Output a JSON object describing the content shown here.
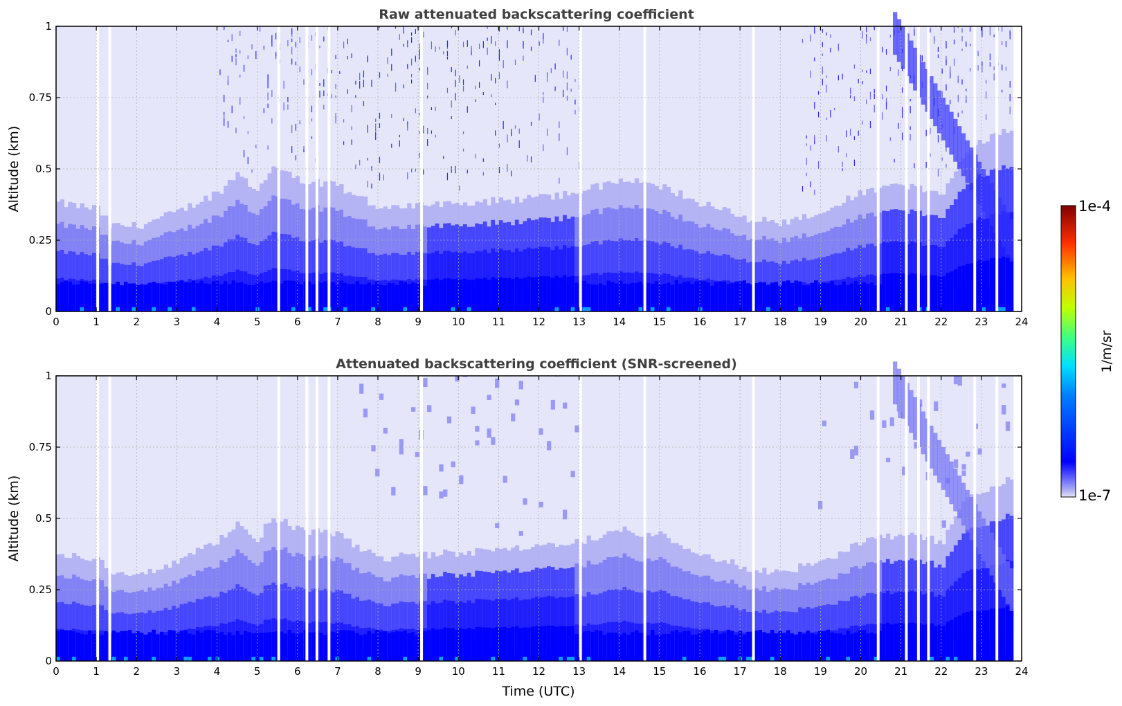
{
  "chart_data": [
    {
      "type": "heatmap",
      "title": "Raw attenuated backscattering coefficient",
      "xlabel": "",
      "ylabel": "Altitude (km)",
      "xlim": [
        0,
        24
      ],
      "ylim": [
        0,
        1
      ],
      "x_ticks": [
        "0",
        "1",
        "2",
        "3",
        "4",
        "5",
        "6",
        "7",
        "8",
        "9",
        "10",
        "11",
        "12",
        "13",
        "14",
        "15",
        "16",
        "17",
        "18",
        "19",
        "20",
        "21",
        "22",
        "23",
        "24"
      ],
      "y_ticks": [
        "0",
        "0.25",
        "0.5",
        "0.75",
        "1"
      ],
      "grid": true,
      "variable": "attenuated backscattering coefficient",
      "units": "1/m/sr",
      "boundary_layer_top_km": [
        {
          "t": 0,
          "z": 0.38
        },
        {
          "t": 1,
          "z": 0.36
        },
        {
          "t": 1.3,
          "z": 0.3
        },
        {
          "t": 2,
          "z": 0.3
        },
        {
          "t": 3,
          "z": 0.35
        },
        {
          "t": 4,
          "z": 0.42
        },
        {
          "t": 4.5,
          "z": 0.48
        },
        {
          "t": 5,
          "z": 0.42
        },
        {
          "t": 5.3,
          "z": 0.51
        },
        {
          "t": 6,
          "z": 0.46
        },
        {
          "t": 7,
          "z": 0.44
        },
        {
          "t": 8,
          "z": 0.36
        },
        {
          "t": 9,
          "z": 0.37
        },
        {
          "t": 10,
          "z": 0.38
        },
        {
          "t": 11,
          "z": 0.39
        },
        {
          "t": 12,
          "z": 0.4
        },
        {
          "t": 13,
          "z": 0.42
        },
        {
          "t": 14,
          "z": 0.46
        },
        {
          "t": 15,
          "z": 0.44
        },
        {
          "t": 16,
          "z": 0.38
        },
        {
          "t": 17,
          "z": 0.33
        },
        {
          "t": 18,
          "z": 0.31
        },
        {
          "t": 19,
          "z": 0.35
        },
        {
          "t": 20,
          "z": 0.42
        },
        {
          "t": 21,
          "z": 0.44
        },
        {
          "t": 22,
          "z": 0.42
        },
        {
          "t": 22.5,
          "z": 0.55
        },
        {
          "t": 23,
          "z": 0.6
        },
        {
          "t": 23.8,
          "z": 0.65
        }
      ],
      "data_gaps_utc": [
        1.0,
        1.3,
        5.5,
        6.2,
        6.45,
        6.75,
        9.05,
        13.0,
        14.6,
        17.3,
        20.4,
        21.1,
        21.4,
        21.65,
        22.8,
        23.35,
        23.8
      ]
    },
    {
      "type": "heatmap",
      "title": "Attenuated backscattering coefficient (SNR-screened)",
      "xlabel": "Time (UTC)",
      "ylabel": "Altitude (km)",
      "xlim": [
        0,
        24
      ],
      "ylim": [
        0,
        1
      ],
      "x_ticks": [
        "0",
        "1",
        "2",
        "3",
        "4",
        "5",
        "6",
        "7",
        "8",
        "9",
        "10",
        "11",
        "12",
        "13",
        "14",
        "15",
        "16",
        "17",
        "18",
        "19",
        "20",
        "21",
        "22",
        "23",
        "24"
      ],
      "y_ticks": [
        "0",
        "0.25",
        "0.5",
        "0.75",
        "1"
      ],
      "grid": true,
      "variable": "attenuated backscattering coefficient",
      "units": "1/m/sr",
      "data_gaps_utc": [
        1.0,
        1.3,
        5.5,
        6.2,
        6.45,
        6.75,
        9.05,
        13.0,
        14.6,
        17.3,
        20.4,
        21.1,
        21.4,
        21.65,
        22.8,
        23.35,
        23.8
      ]
    }
  ],
  "colorbar": {
    "label": "1/m/sr",
    "max_label": "1e-4",
    "min_label": "1e-7",
    "scale": "log",
    "range": [
      1e-07,
      0.0001
    ],
    "colormap": "jet",
    "low_color": "#e6e6fa"
  }
}
